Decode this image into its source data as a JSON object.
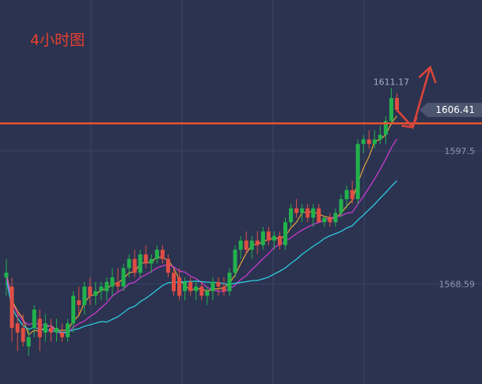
{
  "chart_data": {
    "type": "candlestick",
    "title": "4小时图",
    "y_ticks": [
      {
        "value": 1597.5,
        "label": "1597.5"
      },
      {
        "value": 1568.59,
        "label": "1568.59"
      }
    ],
    "ylim": [
      1553.0,
      1620.0
    ],
    "high_label": {
      "value": 1611.17,
      "label": "1611.17"
    },
    "current_price": {
      "value": 1606.41,
      "label": "1606.41"
    },
    "grid": true,
    "colors": {
      "background": "#2b3350",
      "grid": "#3a4466",
      "up": "#22b24c",
      "down": "#e04e43",
      "ma_short": "#e8a43a",
      "ma_mid": "#d33bd8",
      "ma_long": "#2ed3e6",
      "price_line": "#e8552f",
      "arrow": "#d9453a",
      "label_bg": "#4c556e"
    },
    "candles": [
      {
        "o": 1570,
        "h": 1574,
        "l": 1566,
        "c": 1571
      },
      {
        "o": 1568,
        "h": 1570,
        "l": 1556,
        "c": 1559
      },
      {
        "o": 1560,
        "h": 1563,
        "l": 1554,
        "c": 1558
      },
      {
        "o": 1559,
        "h": 1562,
        "l": 1555,
        "c": 1556
      },
      {
        "o": 1555,
        "h": 1559,
        "l": 1553,
        "c": 1557
      },
      {
        "o": 1559,
        "h": 1564,
        "l": 1557,
        "c": 1563
      },
      {
        "o": 1561,
        "h": 1563,
        "l": 1554,
        "c": 1557
      },
      {
        "o": 1558,
        "h": 1562,
        "l": 1556,
        "c": 1560
      },
      {
        "o": 1559,
        "h": 1561,
        "l": 1556,
        "c": 1558
      },
      {
        "o": 1558,
        "h": 1561,
        "l": 1556,
        "c": 1559
      },
      {
        "o": 1558,
        "h": 1560,
        "l": 1556,
        "c": 1557
      },
      {
        "o": 1557,
        "h": 1561,
        "l": 1556,
        "c": 1560
      },
      {
        "o": 1560,
        "h": 1567,
        "l": 1558,
        "c": 1566
      },
      {
        "o": 1565,
        "h": 1568,
        "l": 1562,
        "c": 1564
      },
      {
        "o": 1564,
        "h": 1569,
        "l": 1562,
        "c": 1568
      },
      {
        "o": 1568,
        "h": 1570,
        "l": 1564,
        "c": 1566
      },
      {
        "o": 1566,
        "h": 1569,
        "l": 1564,
        "c": 1567
      },
      {
        "o": 1567,
        "h": 1569,
        "l": 1565,
        "c": 1568
      },
      {
        "o": 1567,
        "h": 1570,
        "l": 1565,
        "c": 1569
      },
      {
        "o": 1568,
        "h": 1572,
        "l": 1566,
        "c": 1570
      },
      {
        "o": 1569,
        "h": 1572,
        "l": 1567,
        "c": 1568
      },
      {
        "o": 1568,
        "h": 1573,
        "l": 1567,
        "c": 1572
      },
      {
        "o": 1572,
        "h": 1575,
        "l": 1570,
        "c": 1574
      },
      {
        "o": 1574,
        "h": 1576,
        "l": 1570,
        "c": 1571
      },
      {
        "o": 1571,
        "h": 1576,
        "l": 1570,
        "c": 1575
      },
      {
        "o": 1575,
        "h": 1577,
        "l": 1572,
        "c": 1573
      },
      {
        "o": 1573,
        "h": 1575,
        "l": 1571,
        "c": 1574
      },
      {
        "o": 1574,
        "h": 1577,
        "l": 1573,
        "c": 1576
      },
      {
        "o": 1576,
        "h": 1577,
        "l": 1573,
        "c": 1574
      },
      {
        "o": 1574,
        "h": 1575,
        "l": 1570,
        "c": 1571
      },
      {
        "o": 1571,
        "h": 1572,
        "l": 1566,
        "c": 1567
      },
      {
        "o": 1570,
        "h": 1572,
        "l": 1565,
        "c": 1566
      },
      {
        "o": 1567,
        "h": 1570,
        "l": 1565,
        "c": 1569
      },
      {
        "o": 1569,
        "h": 1570,
        "l": 1566,
        "c": 1567
      },
      {
        "o": 1567,
        "h": 1569,
        "l": 1565,
        "c": 1568
      },
      {
        "o": 1568,
        "h": 1569,
        "l": 1565,
        "c": 1566
      },
      {
        "o": 1566,
        "h": 1568,
        "l": 1564,
        "c": 1567
      },
      {
        "o": 1567,
        "h": 1570,
        "l": 1565,
        "c": 1569
      },
      {
        "o": 1569,
        "h": 1570,
        "l": 1566,
        "c": 1568
      },
      {
        "o": 1568,
        "h": 1570,
        "l": 1566,
        "c": 1567
      },
      {
        "o": 1567,
        "h": 1572,
        "l": 1566,
        "c": 1571
      },
      {
        "o": 1571,
        "h": 1577,
        "l": 1570,
        "c": 1576
      },
      {
        "o": 1576,
        "h": 1579,
        "l": 1574,
        "c": 1578
      },
      {
        "o": 1578,
        "h": 1580,
        "l": 1575,
        "c": 1576
      },
      {
        "o": 1576,
        "h": 1579,
        "l": 1574,
        "c": 1578
      },
      {
        "o": 1578,
        "h": 1580,
        "l": 1575,
        "c": 1577
      },
      {
        "o": 1577,
        "h": 1581,
        "l": 1576,
        "c": 1580
      },
      {
        "o": 1580,
        "h": 1581,
        "l": 1577,
        "c": 1578
      },
      {
        "o": 1578,
        "h": 1580,
        "l": 1576,
        "c": 1579
      },
      {
        "o": 1579,
        "h": 1580,
        "l": 1576,
        "c": 1577
      },
      {
        "o": 1577,
        "h": 1583,
        "l": 1576,
        "c": 1582
      },
      {
        "o": 1582,
        "h": 1586,
        "l": 1581,
        "c": 1585
      },
      {
        "o": 1585,
        "h": 1587,
        "l": 1583,
        "c": 1584
      },
      {
        "o": 1584,
        "h": 1586,
        "l": 1582,
        "c": 1585
      },
      {
        "o": 1585,
        "h": 1586,
        "l": 1582,
        "c": 1583
      },
      {
        "o": 1583,
        "h": 1586,
        "l": 1581,
        "c": 1585
      },
      {
        "o": 1585,
        "h": 1586,
        "l": 1582,
        "c": 1582
      },
      {
        "o": 1582,
        "h": 1583,
        "l": 1581,
        "c": 1583
      },
      {
        "o": 1583,
        "h": 1584,
        "l": 1581,
        "c": 1582
      },
      {
        "o": 1582,
        "h": 1585,
        "l": 1581,
        "c": 1584
      },
      {
        "o": 1584,
        "h": 1588,
        "l": 1583,
        "c": 1587
      },
      {
        "o": 1587,
        "h": 1590,
        "l": 1585,
        "c": 1589
      },
      {
        "o": 1589,
        "h": 1591,
        "l": 1586,
        "c": 1587
      },
      {
        "o": 1587,
        "h": 1600,
        "l": 1586,
        "c": 1599
      },
      {
        "o": 1599,
        "h": 1601,
        "l": 1597,
        "c": 1600
      },
      {
        "o": 1600,
        "h": 1602,
        "l": 1598,
        "c": 1599
      },
      {
        "o": 1599,
        "h": 1602,
        "l": 1598,
        "c": 1600
      },
      {
        "o": 1600,
        "h": 1603,
        "l": 1599,
        "c": 1601
      },
      {
        "o": 1601,
        "h": 1605,
        "l": 1599,
        "c": 1604
      },
      {
        "o": 1604,
        "h": 1611.17,
        "l": 1603,
        "c": 1609
      },
      {
        "o": 1609,
        "h": 1610,
        "l": 1606,
        "c": 1606.41
      }
    ]
  }
}
